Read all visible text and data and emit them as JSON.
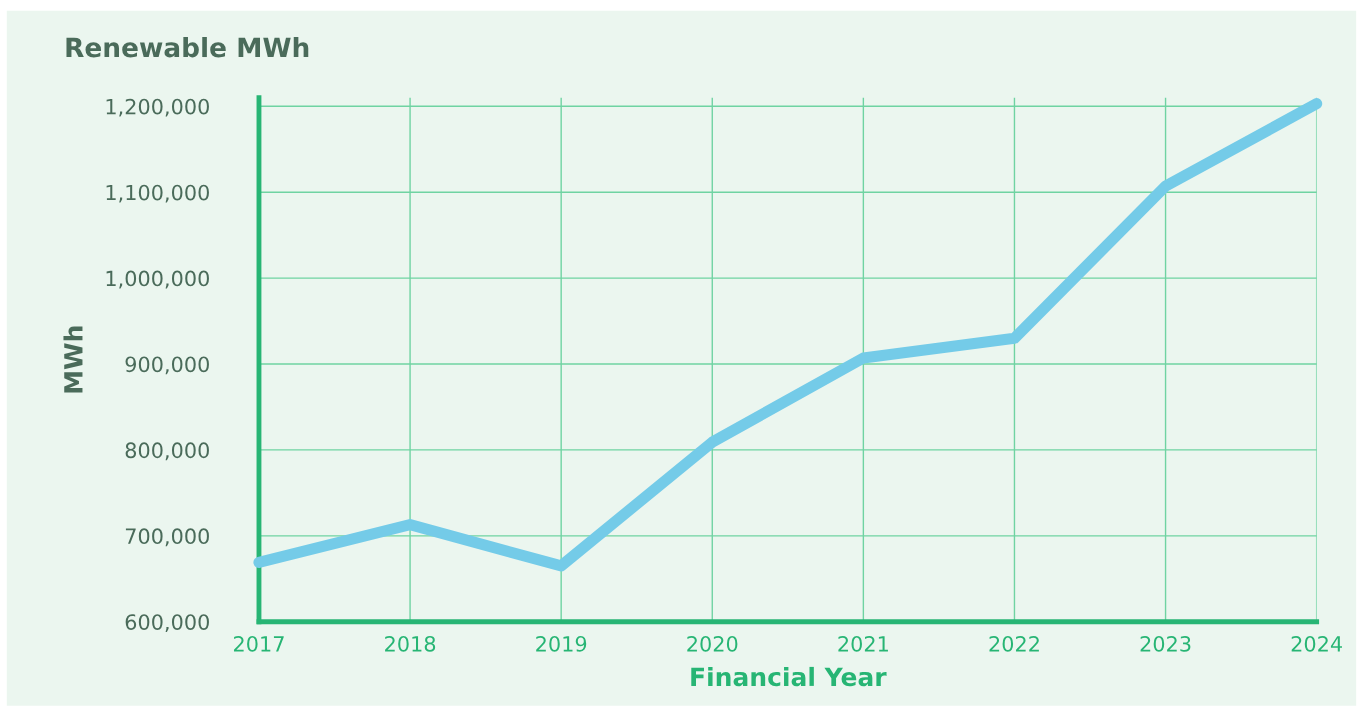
{
  "chart_data": {
    "type": "line",
    "title": "Renewable MWh",
    "xlabel": "Financial Year",
    "ylabel": "MWh",
    "categories": [
      "2017",
      "2018",
      "2019",
      "2020",
      "2021",
      "2022",
      "2023",
      "2024"
    ],
    "series": [
      {
        "color": "#74cbe8",
        "values": [
          669000,
          713000,
          665000,
          809000,
          907000,
          930000,
          1107000,
          1203000
        ]
      }
    ],
    "ylim": [
      600000,
      1210000
    ],
    "yticks": [
      {
        "value": 600000,
        "label": "600,000"
      },
      {
        "value": 700000,
        "label": "700,000"
      },
      {
        "value": 800000,
        "label": "800,000"
      },
      {
        "value": 900000,
        "label": "900,000"
      },
      {
        "value": 1000000,
        "label": "1,000,000"
      },
      {
        "value": 1100000,
        "label": "1,100,000"
      },
      {
        "value": 1200000,
        "label": "1,200,000"
      }
    ],
    "grid": true,
    "line_style": "solid"
  }
}
